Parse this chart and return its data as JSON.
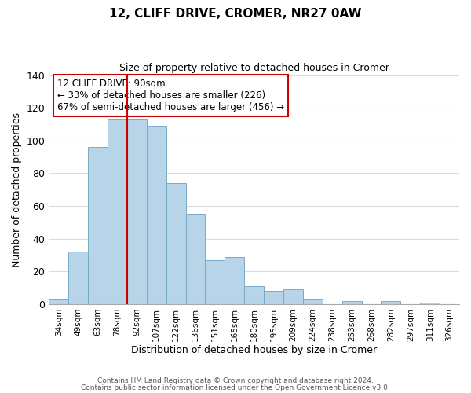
{
  "title": "12, CLIFF DRIVE, CROMER, NR27 0AW",
  "subtitle": "Size of property relative to detached houses in Cromer",
  "xlabel": "Distribution of detached houses by size in Cromer",
  "ylabel": "Number of detached properties",
  "categories": [
    "34sqm",
    "49sqm",
    "63sqm",
    "78sqm",
    "92sqm",
    "107sqm",
    "122sqm",
    "136sqm",
    "151sqm",
    "165sqm",
    "180sqm",
    "195sqm",
    "209sqm",
    "224sqm",
    "238sqm",
    "253sqm",
    "268sqm",
    "282sqm",
    "297sqm",
    "311sqm",
    "326sqm"
  ],
  "values": [
    3,
    32,
    96,
    113,
    113,
    109,
    74,
    55,
    27,
    29,
    11,
    8,
    9,
    3,
    0,
    2,
    0,
    2,
    0,
    1,
    0
  ],
  "bar_color": "#b8d4e8",
  "bar_edge_color": "#7aaac8",
  "vline_color": "#cc0000",
  "vline_x_idx": 4,
  "ylim": [
    0,
    140
  ],
  "yticks": [
    0,
    20,
    40,
    60,
    80,
    100,
    120,
    140
  ],
  "annotation_title": "12 CLIFF DRIVE: 90sqm",
  "annotation_line1": "← 33% of detached houses are smaller (226)",
  "annotation_line2": "67% of semi-detached houses are larger (456) →",
  "annotation_box_color": "#ffffff",
  "annotation_box_edge": "#cc0000",
  "footer1": "Contains HM Land Registry data © Crown copyright and database right 2024.",
  "footer2": "Contains public sector information licensed under the Open Government Licence v3.0.",
  "background_color": "#ffffff",
  "grid_color": "#dddddd"
}
